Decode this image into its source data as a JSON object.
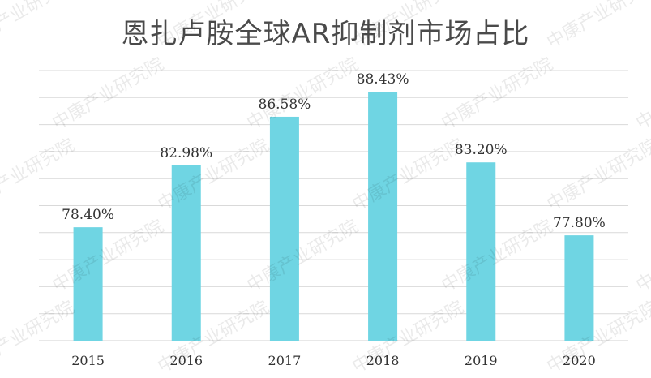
{
  "chart_data": {
    "type": "bar",
    "title": "恩扎卢胺全球AR抑制剂市场占比",
    "categories": [
      "2015",
      "2016",
      "2017",
      "2018",
      "2019",
      "2020"
    ],
    "values": [
      78.4,
      82.98,
      86.58,
      88.43,
      83.2,
      77.8
    ],
    "data_labels": [
      "78.40%",
      "82.98%",
      "86.58%",
      "88.43%",
      "83.20%",
      "77.80%"
    ],
    "unit": "%",
    "ylim": [
      70,
      90
    ],
    "grid": true,
    "bar_color": "#6fd5e3",
    "grid_color": "#d9d9d9"
  },
  "watermark": {
    "text": "中康产业研究院"
  }
}
